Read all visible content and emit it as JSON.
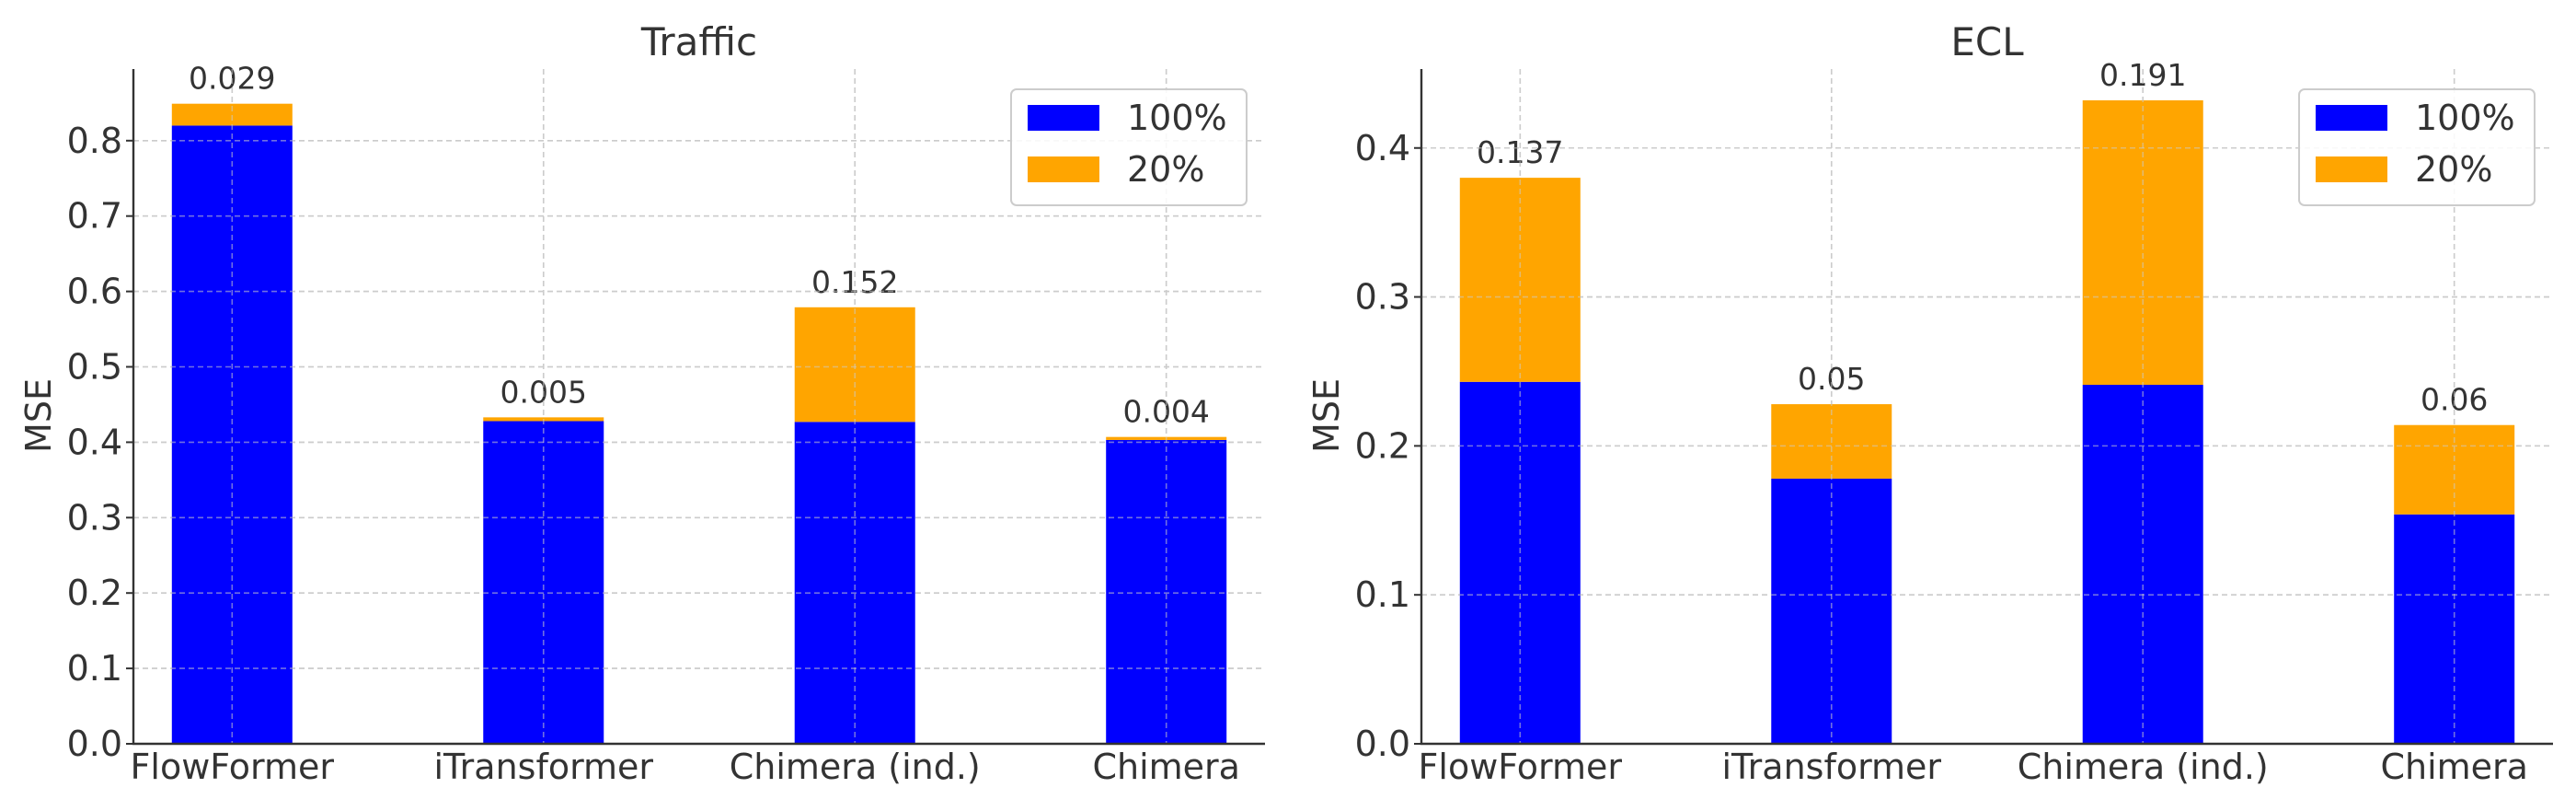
{
  "chart_data": [
    {
      "type": "bar",
      "stacked": true,
      "title": "Traffic",
      "xlabel": "",
      "ylabel": "MSE",
      "categories": [
        "FlowFormer",
        "iTransformer",
        "Chimera (ind.)",
        "Chimera"
      ],
      "series": [
        {
          "name": "100%",
          "color": "#0000ff",
          "values": [
            0.82,
            0.428,
            0.427,
            0.403
          ]
        },
        {
          "name": "20%",
          "color": "#ffa500",
          "values": [
            0.029,
            0.005,
            0.152,
            0.004
          ]
        }
      ],
      "data_labels": [
        "0.029",
        "0.005",
        "0.152",
        "0.004"
      ],
      "ylim": [
        0,
        0.895
      ],
      "yticks": [
        0.0,
        0.1,
        0.2,
        0.3,
        0.4,
        0.5,
        0.6,
        0.7,
        0.8
      ],
      "ytick_labels": [
        "0.0",
        "0.1",
        "0.2",
        "0.3",
        "0.4",
        "0.5",
        "0.6",
        "0.7",
        "0.8"
      ],
      "grid": true,
      "legend": "top-right"
    },
    {
      "type": "bar",
      "stacked": true,
      "title": "ECL",
      "xlabel": "",
      "ylabel": "MSE",
      "categories": [
        "FlowFormer",
        "iTransformer",
        "Chimera (ind.)",
        "Chimera"
      ],
      "series": [
        {
          "name": "100%",
          "color": "#0000ff",
          "values": [
            0.243,
            0.178,
            0.241,
            0.154
          ]
        },
        {
          "name": "20%",
          "color": "#ffa500",
          "values": [
            0.137,
            0.05,
            0.191,
            0.06
          ]
        }
      ],
      "data_labels": [
        "0.137",
        "0.05",
        "0.191",
        "0.06"
      ],
      "ylim": [
        0,
        0.453
      ],
      "yticks": [
        0.0,
        0.1,
        0.2,
        0.3,
        0.4
      ],
      "ytick_labels": [
        "0.0",
        "0.1",
        "0.2",
        "0.3",
        "0.4"
      ],
      "grid": true,
      "legend": "top-right"
    }
  ]
}
